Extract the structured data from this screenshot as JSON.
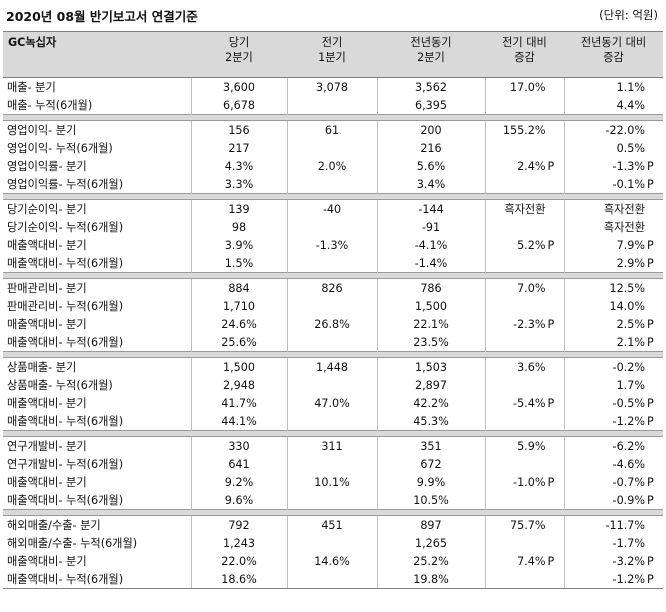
{
  "title": "2020년 08월 반기보고서 연결기준",
  "unit": "(단위: 억원)",
  "header": {
    "company": "GC녹십자",
    "col1": [
      "당기",
      "2분기"
    ],
    "col2": [
      "전기",
      "1분기"
    ],
    "col3": [
      "전년동기",
      "2분기"
    ],
    "col4": [
      "전기 대비",
      "증감"
    ],
    "col5": [
      "전년동기 대비",
      "증감"
    ]
  },
  "sections": [
    {
      "rows": [
        [
          "매출- 분기",
          "3,600",
          "3,078",
          "3,562",
          "17.0%",
          "",
          "1.1%",
          ""
        ],
        [
          "매출- 누적(6개월)",
          "6,678",
          "",
          "6,395",
          "",
          "",
          "4.4%",
          ""
        ]
      ]
    },
    {
      "rows": [
        [
          "영업이익- 분기",
          "156",
          "61",
          "200",
          "155.2%",
          "",
          "-22.0%",
          ""
        ],
        [
          "영업이익- 누적(6개월)",
          "217",
          "",
          "216",
          "",
          "",
          "0.5%",
          ""
        ],
        [
          "영업이익률- 분기",
          "4.3%",
          "2.0%",
          "5.6%",
          "2.4%",
          "P",
          "-1.3%",
          "P"
        ],
        [
          "영업이익률- 누적(6개월)",
          "3.3%",
          "",
          "3.4%",
          "",
          "",
          "-0.1%",
          "P"
        ]
      ]
    },
    {
      "rows": [
        [
          "당기순이익- 분기",
          "139",
          "-40",
          "-144",
          "흑자전환",
          "",
          "흑자전환",
          ""
        ],
        [
          "당기순이익- 누적(6개월)",
          "98",
          "",
          "-91",
          "",
          "",
          "흑자전환",
          ""
        ],
        [
          "매출액대비- 분기",
          "3.9%",
          "-1.3%",
          "-4.1%",
          "5.2%",
          "P",
          "7.9%",
          "P"
        ],
        [
          "매출액대비- 누적(6개월)",
          "1.5%",
          "",
          "-1.4%",
          "",
          "",
          "2.9%",
          "P"
        ]
      ]
    },
    {
      "rows": [
        [
          "판매관리비- 분기",
          "884",
          "826",
          "786",
          "7.0%",
          "",
          "12.5%",
          ""
        ],
        [
          "판매관리비- 누적(6개월)",
          "1,710",
          "",
          "1,500",
          "",
          "",
          "14.0%",
          ""
        ],
        [
          "매출액대비- 분기",
          "24.6%",
          "26.8%",
          "22.1%",
          "-2.3%",
          "P",
          "2.5%",
          "P"
        ],
        [
          "매출액대비- 누적(6개월)",
          "25.6%",
          "",
          "23.5%",
          "",
          "",
          "2.1%",
          "P"
        ]
      ]
    },
    {
      "rows": [
        [
          "상품매출- 분기",
          "1,500",
          "1,448",
          "1,503",
          "3.6%",
          "",
          "-0.2%",
          ""
        ],
        [
          "상품매출- 누적(6개월)",
          "2,948",
          "",
          "2,897",
          "",
          "",
          "1.7%",
          ""
        ],
        [
          "매출액대비- 분기",
          "41.7%",
          "47.0%",
          "42.2%",
          "-5.4%",
          "P",
          "-0.5%",
          "P"
        ],
        [
          "매출액대비- 누적(6개월)",
          "44.1%",
          "",
          "45.3%",
          "",
          "",
          "-1.2%",
          "P"
        ]
      ]
    },
    {
      "rows": [
        [
          "연구개발비- 분기",
          "330",
          "311",
          "351",
          "5.9%",
          "",
          "-6.2%",
          ""
        ],
        [
          "연구개발비- 누적(6개월)",
          "641",
          "",
          "672",
          "",
          "",
          "-4.6%",
          ""
        ],
        [
          "매출액대비- 분기",
          "9.2%",
          "10.1%",
          "9.9%",
          "-1.0%",
          "P",
          "-0.7%",
          "P"
        ],
        [
          "매출액대비- 누적(6개월)",
          "9.6%",
          "",
          "10.5%",
          "",
          "",
          "-0.9%",
          "P"
        ]
      ]
    },
    {
      "rows": [
        [
          "해외매출/수출- 분기",
          "792",
          "451",
          "897",
          "75.7%",
          "",
          "-11.7%",
          ""
        ],
        [
          "해외매출/수출- 누적(6개월)",
          "1,243",
          "",
          "1,265",
          "",
          "",
          "-1.7%",
          ""
        ],
        [
          "매출액대비- 분기",
          "22.0%",
          "14.6%",
          "25.2%",
          "7.4%",
          "P",
          "-3.2%",
          "P"
        ],
        [
          "매출액대비- 누적(6개월)",
          "18.6%",
          "",
          "19.8%",
          "",
          "",
          "-1.2%",
          "P"
        ]
      ]
    }
  ]
}
